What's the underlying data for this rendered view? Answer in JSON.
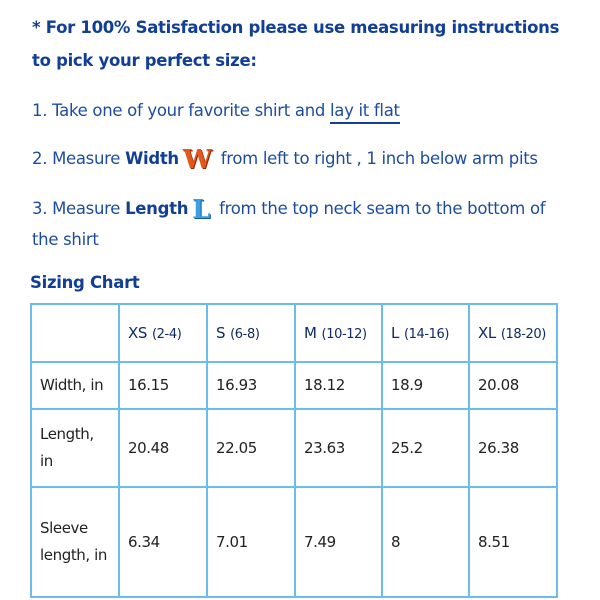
{
  "intro": {
    "line1": "* For 100% Satisfaction please use measuring instructions",
    "line2": "to pick your perfect size:"
  },
  "steps": [
    {
      "prefix": "1. Take one of your favorite shirt and ",
      "link": "lay it flat"
    },
    {
      "prefix": "2. Measure ",
      "bold": "Width",
      "icon_letter": "W",
      "suffix": " from left to right , 1 inch below arm pits"
    },
    {
      "prefix": "3. Measure ",
      "bold": "Length",
      "icon_letter": "L",
      "suffix": " from the top neck seam to the bottom of",
      "continuation": "the shirt"
    }
  ],
  "sizing_chart": {
    "title": "Sizing Chart",
    "columns": [
      {
        "size": "XS",
        "range": "(2-4)"
      },
      {
        "size": "S",
        "range": "(6-8)"
      },
      {
        "size": "M",
        "range": "(10-12)"
      },
      {
        "size": "L",
        "range": "(14-16)"
      },
      {
        "size": "XL",
        "range": "(18-20)"
      }
    ],
    "rows": [
      {
        "label": "Width, in",
        "values": [
          "16.15",
          "16.93",
          "18.12",
          "18.9",
          "20.08"
        ]
      },
      {
        "label": "Length, in",
        "values": [
          "20.48",
          "22.05",
          "23.63",
          "25.2",
          "26.38"
        ]
      },
      {
        "label": "Sleeve length, in",
        "values": [
          "6.34",
          "7.01",
          "7.49",
          "8",
          "8.51"
        ]
      }
    ]
  },
  "colors": {
    "heading": "#123f96",
    "text": "#1d4c9f",
    "table_border": "#6cbcef"
  }
}
